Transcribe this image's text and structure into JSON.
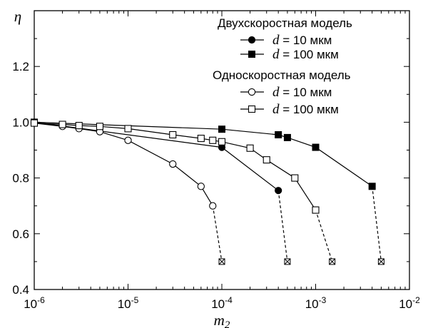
{
  "chart_data": {
    "type": "line",
    "xscale": "log",
    "xlim": [
      1e-06,
      0.01
    ],
    "ylim": [
      0.4,
      1.4
    ],
    "grid": false,
    "legend_placement": "top-right",
    "xlabel": "m",
    "xlabel_sub": "2",
    "ylabel": "η",
    "x_ticks": [
      {
        "value": 1e-06,
        "base": "10",
        "exp": "-6"
      },
      {
        "value": 1e-05,
        "base": "10",
        "exp": "-5"
      },
      {
        "value": 0.0001,
        "base": "10",
        "exp": "-4"
      },
      {
        "value": 0.001,
        "base": "10",
        "exp": "-3"
      },
      {
        "value": 0.01,
        "base": "10",
        "exp": "-2"
      }
    ],
    "y_ticks": [
      {
        "value": 0.4,
        "label": "0.4"
      },
      {
        "value": 0.6,
        "label": "0.6"
      },
      {
        "value": 0.8,
        "label": "0.8"
      },
      {
        "value": 1.0,
        "label": "1.0"
      },
      {
        "value": 1.2,
        "label": "1.2"
      }
    ],
    "legend": {
      "group1_title": "Двухскоростная модель",
      "group2_title": "Односкоростная модель",
      "d_symbol": "d",
      "unit": "мкм"
    },
    "series": [
      {
        "name": "d = 10 мкм",
        "group": "Двухскоростная модель",
        "d_value": "= 10",
        "marker": "filled-circle",
        "x": [
          1e-06,
          0.0001,
          0.0004
        ],
        "y": [
          1.0,
          0.91,
          0.755
        ],
        "dashed_x": [
          0.0004,
          0.0005
        ],
        "dashed_y": [
          0.755,
          0.5
        ]
      },
      {
        "name": "d = 100 мкм",
        "group": "Двухскоростная модель",
        "d_value": "= 100",
        "marker": "filled-square",
        "x": [
          1e-06,
          0.0001,
          0.0004,
          0.0005,
          0.001,
          0.004
        ],
        "y": [
          1.0,
          0.975,
          0.955,
          0.945,
          0.91,
          0.77
        ],
        "dashed_x": [
          0.004,
          0.005
        ],
        "dashed_y": [
          0.77,
          0.5
        ]
      },
      {
        "name": "d = 10 мкм",
        "group": "Односкоростная модель",
        "d_value": "= 10",
        "marker": "open-circle",
        "x": [
          1e-06,
          2e-06,
          3e-06,
          5e-06,
          1e-05,
          3e-05,
          6e-05,
          8e-05
        ],
        "y": [
          0.997,
          0.985,
          0.977,
          0.966,
          0.935,
          0.85,
          0.77,
          0.7
        ],
        "dashed_x": [
          8e-05,
          0.0001
        ],
        "dashed_y": [
          0.7,
          0.5
        ]
      },
      {
        "name": "d = 100 мкм",
        "group": "Односкоростная модель",
        "d_value": "= 100",
        "marker": "open-square",
        "x": [
          1e-06,
          2e-06,
          3e-06,
          5e-06,
          1e-05,
          3e-05,
          6e-05,
          8e-05,
          0.0001,
          0.0002,
          0.0003,
          0.0006,
          0.001
        ],
        "y": [
          0.997,
          0.992,
          0.988,
          0.985,
          0.977,
          0.955,
          0.942,
          0.935,
          0.93,
          0.907,
          0.865,
          0.8,
          0.685
        ],
        "dashed_x": [
          0.001,
          0.0015
        ],
        "dashed_y": [
          0.685,
          0.5
        ]
      }
    ],
    "end_markers": {
      "marker": "crossed-square",
      "points": [
        {
          "x": 0.0001,
          "y": 0.5
        },
        {
          "x": 0.0005,
          "y": 0.5
        },
        {
          "x": 0.0015,
          "y": 0.5
        },
        {
          "x": 0.005,
          "y": 0.5
        }
      ]
    }
  }
}
